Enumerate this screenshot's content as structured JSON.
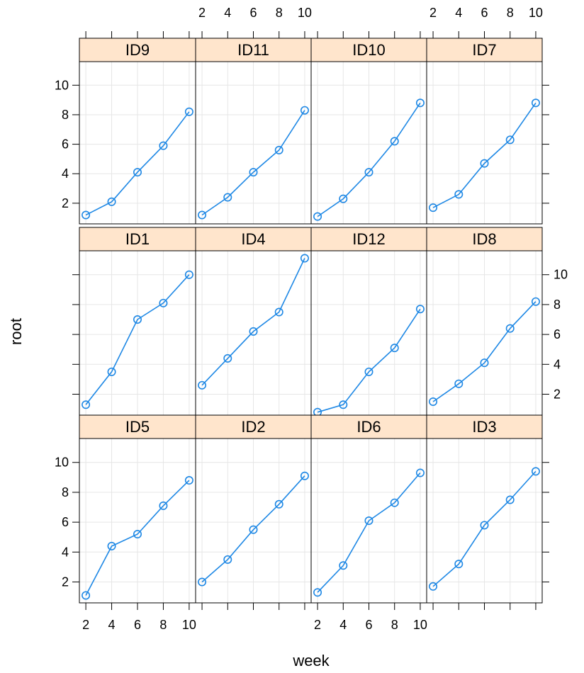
{
  "chart_data": {
    "type": "line",
    "xlabel": "week",
    "ylabel": "root",
    "xlim": [
      1.5,
      10.5
    ],
    "ylim": [
      0.6,
      11.6
    ],
    "x_ticks": [
      2,
      4,
      6,
      8,
      10
    ],
    "y_ticks": [
      2,
      4,
      6,
      8,
      10
    ],
    "grid": true,
    "colors": {
      "line": "#1E88E5",
      "strip": "#FFE5CC",
      "grid": "#E6E6E6",
      "frame": "#000000"
    },
    "x": [
      2,
      4,
      6,
      8,
      10
    ],
    "panels": [
      {
        "name": "ID9",
        "values": [
          1.2,
          2.1,
          4.1,
          5.9,
          8.2
        ]
      },
      {
        "name": "ID11",
        "values": [
          1.2,
          2.4,
          4.1,
          5.6,
          8.3
        ]
      },
      {
        "name": "ID10",
        "values": [
          1.1,
          2.3,
          4.1,
          6.2,
          8.8
        ]
      },
      {
        "name": "ID7",
        "values": [
          1.7,
          2.6,
          4.7,
          6.3,
          8.8
        ]
      },
      {
        "name": "ID1",
        "values": [
          1.3,
          3.5,
          7.0,
          8.1,
          10.0
        ]
      },
      {
        "name": "ID4",
        "values": [
          2.6,
          4.4,
          6.2,
          7.5,
          11.1
        ]
      },
      {
        "name": "ID12",
        "values": [
          0.8,
          1.3,
          3.5,
          5.1,
          7.7
        ]
      },
      {
        "name": "ID8",
        "values": [
          1.5,
          2.7,
          4.1,
          6.4,
          8.2
        ]
      },
      {
        "name": "ID5",
        "values": [
          1.1,
          4.4,
          5.2,
          7.1,
          8.8
        ]
      },
      {
        "name": "ID2",
        "values": [
          2.0,
          3.5,
          5.5,
          7.2,
          9.1
        ]
      },
      {
        "name": "ID6",
        "values": [
          1.3,
          3.1,
          6.1,
          7.3,
          9.3
        ]
      },
      {
        "name": "ID3",
        "values": [
          1.7,
          3.2,
          5.8,
          7.5,
          9.4
        ]
      }
    ]
  }
}
